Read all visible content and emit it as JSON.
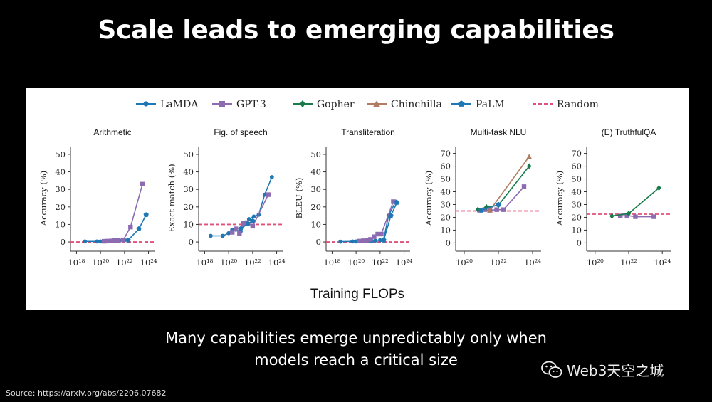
{
  "slide": {
    "title": "Scale leads to emerging capabilities",
    "caption_line1": "Many capabilities emerge unpredictably only when",
    "caption_line2": "models reach a critical size",
    "source": "Source: https://arxiv.org/abs/2206.07682",
    "watermark": "Web3天空之城",
    "watermark_icon": "wechat-icon",
    "xlabel": "Training FLOPs"
  },
  "legend": [
    {
      "name": "LaMDA",
      "color": "#1f77b4",
      "marker": "circle"
    },
    {
      "name": "GPT-3",
      "color": "#8c6bb1",
      "marker": "square"
    },
    {
      "name": "Gopher",
      "color": "#1a7a4c",
      "marker": "diamond"
    },
    {
      "name": "Chinchilla",
      "color": "#b07d62",
      "marker": "triangle"
    },
    {
      "name": "PaLM",
      "color": "#1f77b4",
      "marker": "pentagon"
    },
    {
      "name": "Random",
      "color": "#e0507a",
      "marker": "dashed"
    }
  ],
  "chart_data": [
    {
      "type": "line",
      "title": "Arithmetic",
      "ylabel": "Accuracy (%)",
      "x_scale": "log",
      "xlim_log10": [
        17.5,
        24.5
      ],
      "x_ticks_log10": [
        18,
        20,
        22,
        24
      ],
      "ylim": [
        -2,
        52
      ],
      "y_ticks": [
        0,
        10,
        20,
        30,
        40,
        50
      ],
      "random": 0,
      "series": [
        {
          "name": "LaMDA",
          "points": [
            [
              18.7,
              0.3
            ],
            [
              19.7,
              0.3
            ],
            [
              20.0,
              0.3
            ],
            [
              20.4,
              0.5
            ],
            [
              20.7,
              0.5
            ],
            [
              21.0,
              0.6
            ],
            [
              21.3,
              0.7
            ],
            [
              21.6,
              0.8
            ],
            [
              22.0,
              1.0
            ],
            [
              22.3,
              1.2
            ]
          ]
        },
        {
          "name": "GPT-3",
          "points": [
            [
              20.3,
              0.4
            ],
            [
              20.6,
              0.5
            ],
            [
              20.9,
              0.6
            ],
            [
              21.2,
              0.8
            ],
            [
              21.5,
              1.0
            ],
            [
              21.9,
              1.2
            ],
            [
              22.5,
              8.5
            ],
            [
              23.5,
              33.0
            ]
          ]
        },
        {
          "name": "PaLM",
          "points": [
            [
              22.3,
              1.0
            ],
            [
              23.2,
              7.5
            ],
            [
              23.8,
              15.5
            ]
          ]
        }
      ]
    },
    {
      "type": "line",
      "title": "Fig. of speech",
      "ylabel": "Exact match (%)",
      "x_scale": "log",
      "xlim_log10": [
        17.5,
        24.5
      ],
      "x_ticks_log10": [
        18,
        20,
        22,
        24
      ],
      "ylim": [
        -2,
        52
      ],
      "y_ticks": [
        0,
        10,
        20,
        30,
        40,
        50
      ],
      "random": 10,
      "series": [
        {
          "name": "LaMDA",
          "points": [
            [
              18.5,
              3.5
            ],
            [
              19.5,
              3.5
            ],
            [
              20.0,
              5.0
            ],
            [
              20.3,
              7.0
            ],
            [
              20.6,
              7.0
            ],
            [
              21.0,
              6.0
            ],
            [
              21.3,
              10.0
            ],
            [
              21.7,
              13.0
            ],
            [
              22.1,
              14.5
            ],
            [
              22.5,
              15.5
            ],
            [
              23.0,
              27.0
            ],
            [
              23.6,
              37.0
            ]
          ]
        },
        {
          "name": "GPT-3",
          "points": [
            [
              20.3,
              5.5
            ],
            [
              20.6,
              7.5
            ],
            [
              20.9,
              5.0
            ],
            [
              21.2,
              10.5
            ],
            [
              21.5,
              11.0
            ],
            [
              22.0,
              9.0
            ],
            [
              23.3,
              27.0
            ]
          ]
        },
        {
          "name": "PaLM",
          "points": [
            [
              21.0,
              7.5
            ],
            [
              21.6,
              10.5
            ],
            [
              22.0,
              12.0
            ]
          ]
        }
      ]
    },
    {
      "type": "line",
      "title": "Transliteration",
      "ylabel": "BLEU (%)",
      "x_scale": "log",
      "xlim_log10": [
        17.5,
        24.5
      ],
      "x_ticks_log10": [
        18,
        20,
        22,
        24
      ],
      "ylim": [
        -2,
        52
      ],
      "y_ticks": [
        0,
        10,
        20,
        30,
        40,
        50
      ],
      "random": 0,
      "series": [
        {
          "name": "LaMDA",
          "points": [
            [
              18.7,
              0.2
            ],
            [
              19.7,
              0.3
            ],
            [
              20.0,
              0.3
            ],
            [
              20.4,
              0.4
            ],
            [
              20.7,
              0.5
            ],
            [
              21.0,
              0.5
            ],
            [
              21.3,
              0.6
            ],
            [
              21.6,
              0.8
            ],
            [
              22.0,
              1.0
            ],
            [
              22.3,
              1.5
            ],
            [
              22.7,
              15.0
            ],
            [
              23.3,
              23.0
            ]
          ]
        },
        {
          "name": "GPT-3",
          "points": [
            [
              20.3,
              0.5
            ],
            [
              20.6,
              0.7
            ],
            [
              20.9,
              1.0
            ],
            [
              21.2,
              1.5
            ],
            [
              21.5,
              3.0
            ],
            [
              21.8,
              4.5
            ],
            [
              22.1,
              4.5
            ],
            [
              23.1,
              23.0
            ]
          ]
        },
        {
          "name": "PaLM",
          "points": [
            [
              22.3,
              1.0
            ],
            [
              22.9,
              15.0
            ],
            [
              23.4,
              22.5
            ]
          ]
        }
      ]
    },
    {
      "type": "line",
      "title": "Multi-task NLU",
      "ylabel": "Accuracy (%)",
      "x_scale": "log",
      "xlim_log10": [
        19.5,
        24.5
      ],
      "x_ticks_log10": [
        20,
        22,
        24
      ],
      "ylim": [
        -2,
        72
      ],
      "y_ticks": [
        0,
        10,
        20,
        30,
        40,
        50,
        60,
        70
      ],
      "random": 25,
      "series": [
        {
          "name": "GPT-3",
          "points": [
            [
              20.9,
              25.5
            ],
            [
              21.2,
              26.0
            ],
            [
              21.5,
              25.5
            ],
            [
              21.9,
              26.0
            ],
            [
              22.3,
              26.0
            ],
            [
              23.5,
              44.0
            ]
          ]
        },
        {
          "name": "Gopher",
          "points": [
            [
              20.8,
              26.0
            ],
            [
              21.3,
              28.0
            ],
            [
              22.0,
              29.5
            ],
            [
              23.8,
              60.0
            ]
          ]
        },
        {
          "name": "Chinchilla",
          "points": [
            [
              21.5,
              25.5
            ],
            [
              23.8,
              67.5
            ]
          ]
        },
        {
          "name": "PaLM",
          "points": [
            [
              21.0,
              25.5
            ],
            [
              22.0,
              30.0
            ]
          ]
        }
      ]
    },
    {
      "type": "line",
      "title": "(E) TruthfulQA",
      "ylabel": "Accuracy (%)",
      "x_scale": "log",
      "xlim_log10": [
        19.5,
        24.5
      ],
      "x_ticks_log10": [
        20,
        22,
        24
      ],
      "ylim": [
        -2,
        72
      ],
      "y_ticks": [
        0,
        10,
        20,
        30,
        40,
        50,
        60,
        70
      ],
      "random": 22.5,
      "series": [
        {
          "name": "GPT-3",
          "points": [
            [
              21.5,
              21.0
            ],
            [
              21.9,
              21.5
            ],
            [
              22.4,
              20.5
            ],
            [
              23.5,
              20.5
            ]
          ]
        },
        {
          "name": "Gopher",
          "points": [
            [
              21.0,
              21.0
            ],
            [
              22.0,
              23.0
            ],
            [
              23.8,
              43.0
            ]
          ]
        }
      ]
    }
  ]
}
